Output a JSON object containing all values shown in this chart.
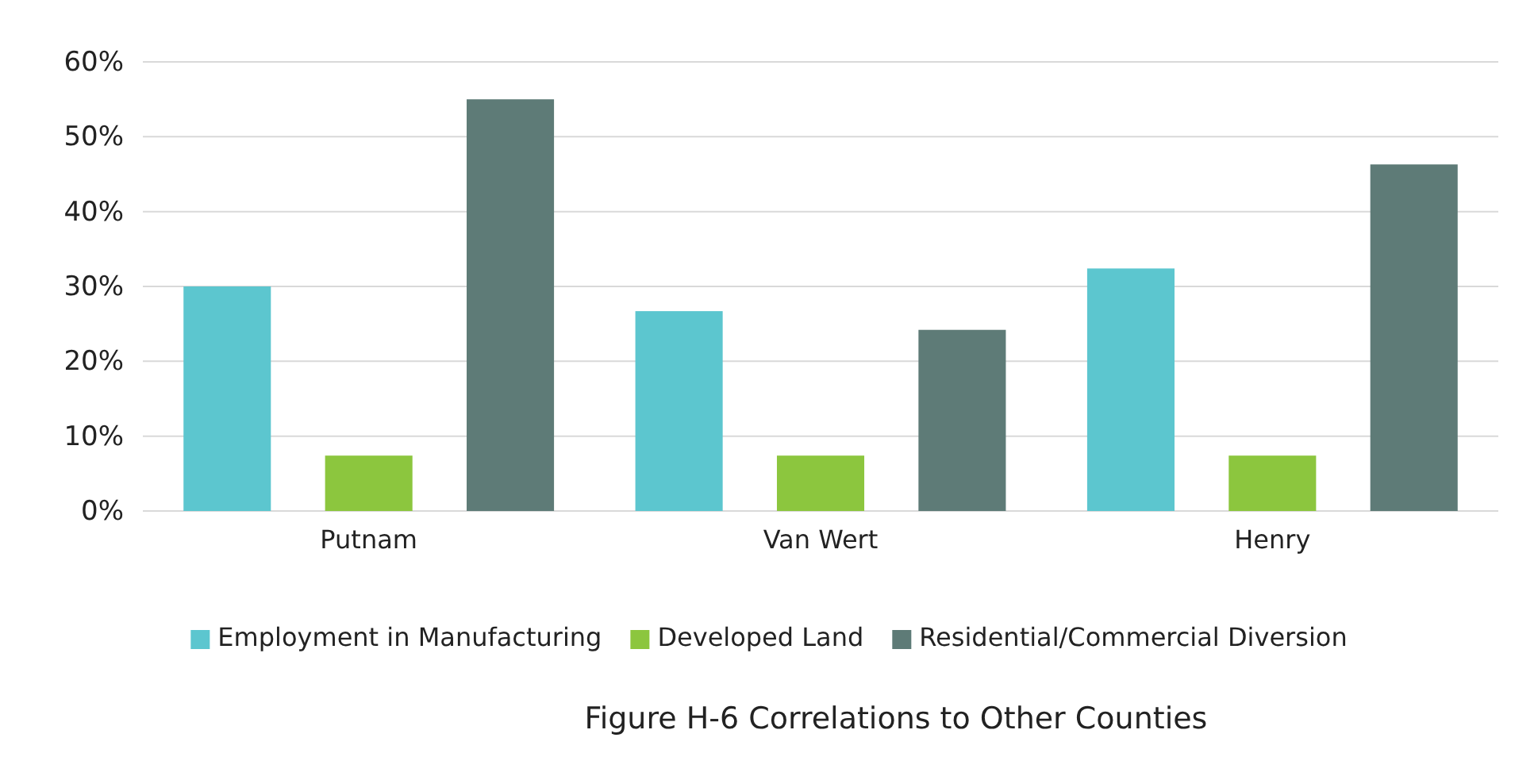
{
  "chart_data": {
    "type": "bar",
    "title": "Figure H-6 Correlations to Other Counties",
    "categories": [
      "Putnam",
      "Van Wert",
      "Henry"
    ],
    "series": [
      {
        "name": "Employment in Manufacturing",
        "color": "#5cc6cf",
        "values": [
          30,
          26.7,
          32.4
        ]
      },
      {
        "name": "Developed Land",
        "color": "#8cc63e",
        "values": [
          7.4,
          7.4,
          7.4
        ]
      },
      {
        "name": "Residential/Commercial Diversion",
        "color": "#5e7b77",
        "values": [
          55,
          24.2,
          46.3
        ]
      }
    ],
    "ylim": [
      0,
      60
    ],
    "yticks": [
      {
        "value": 0,
        "label": "0%"
      },
      {
        "value": 10,
        "label": "10%"
      },
      {
        "value": 20,
        "label": "20%"
      },
      {
        "value": 30,
        "label": "30%"
      },
      {
        "value": 40,
        "label": "40%"
      },
      {
        "value": 50,
        "label": "50%"
      },
      {
        "value": 60,
        "label": "60%"
      }
    ],
    "grid": "y",
    "legend": "bottom"
  }
}
